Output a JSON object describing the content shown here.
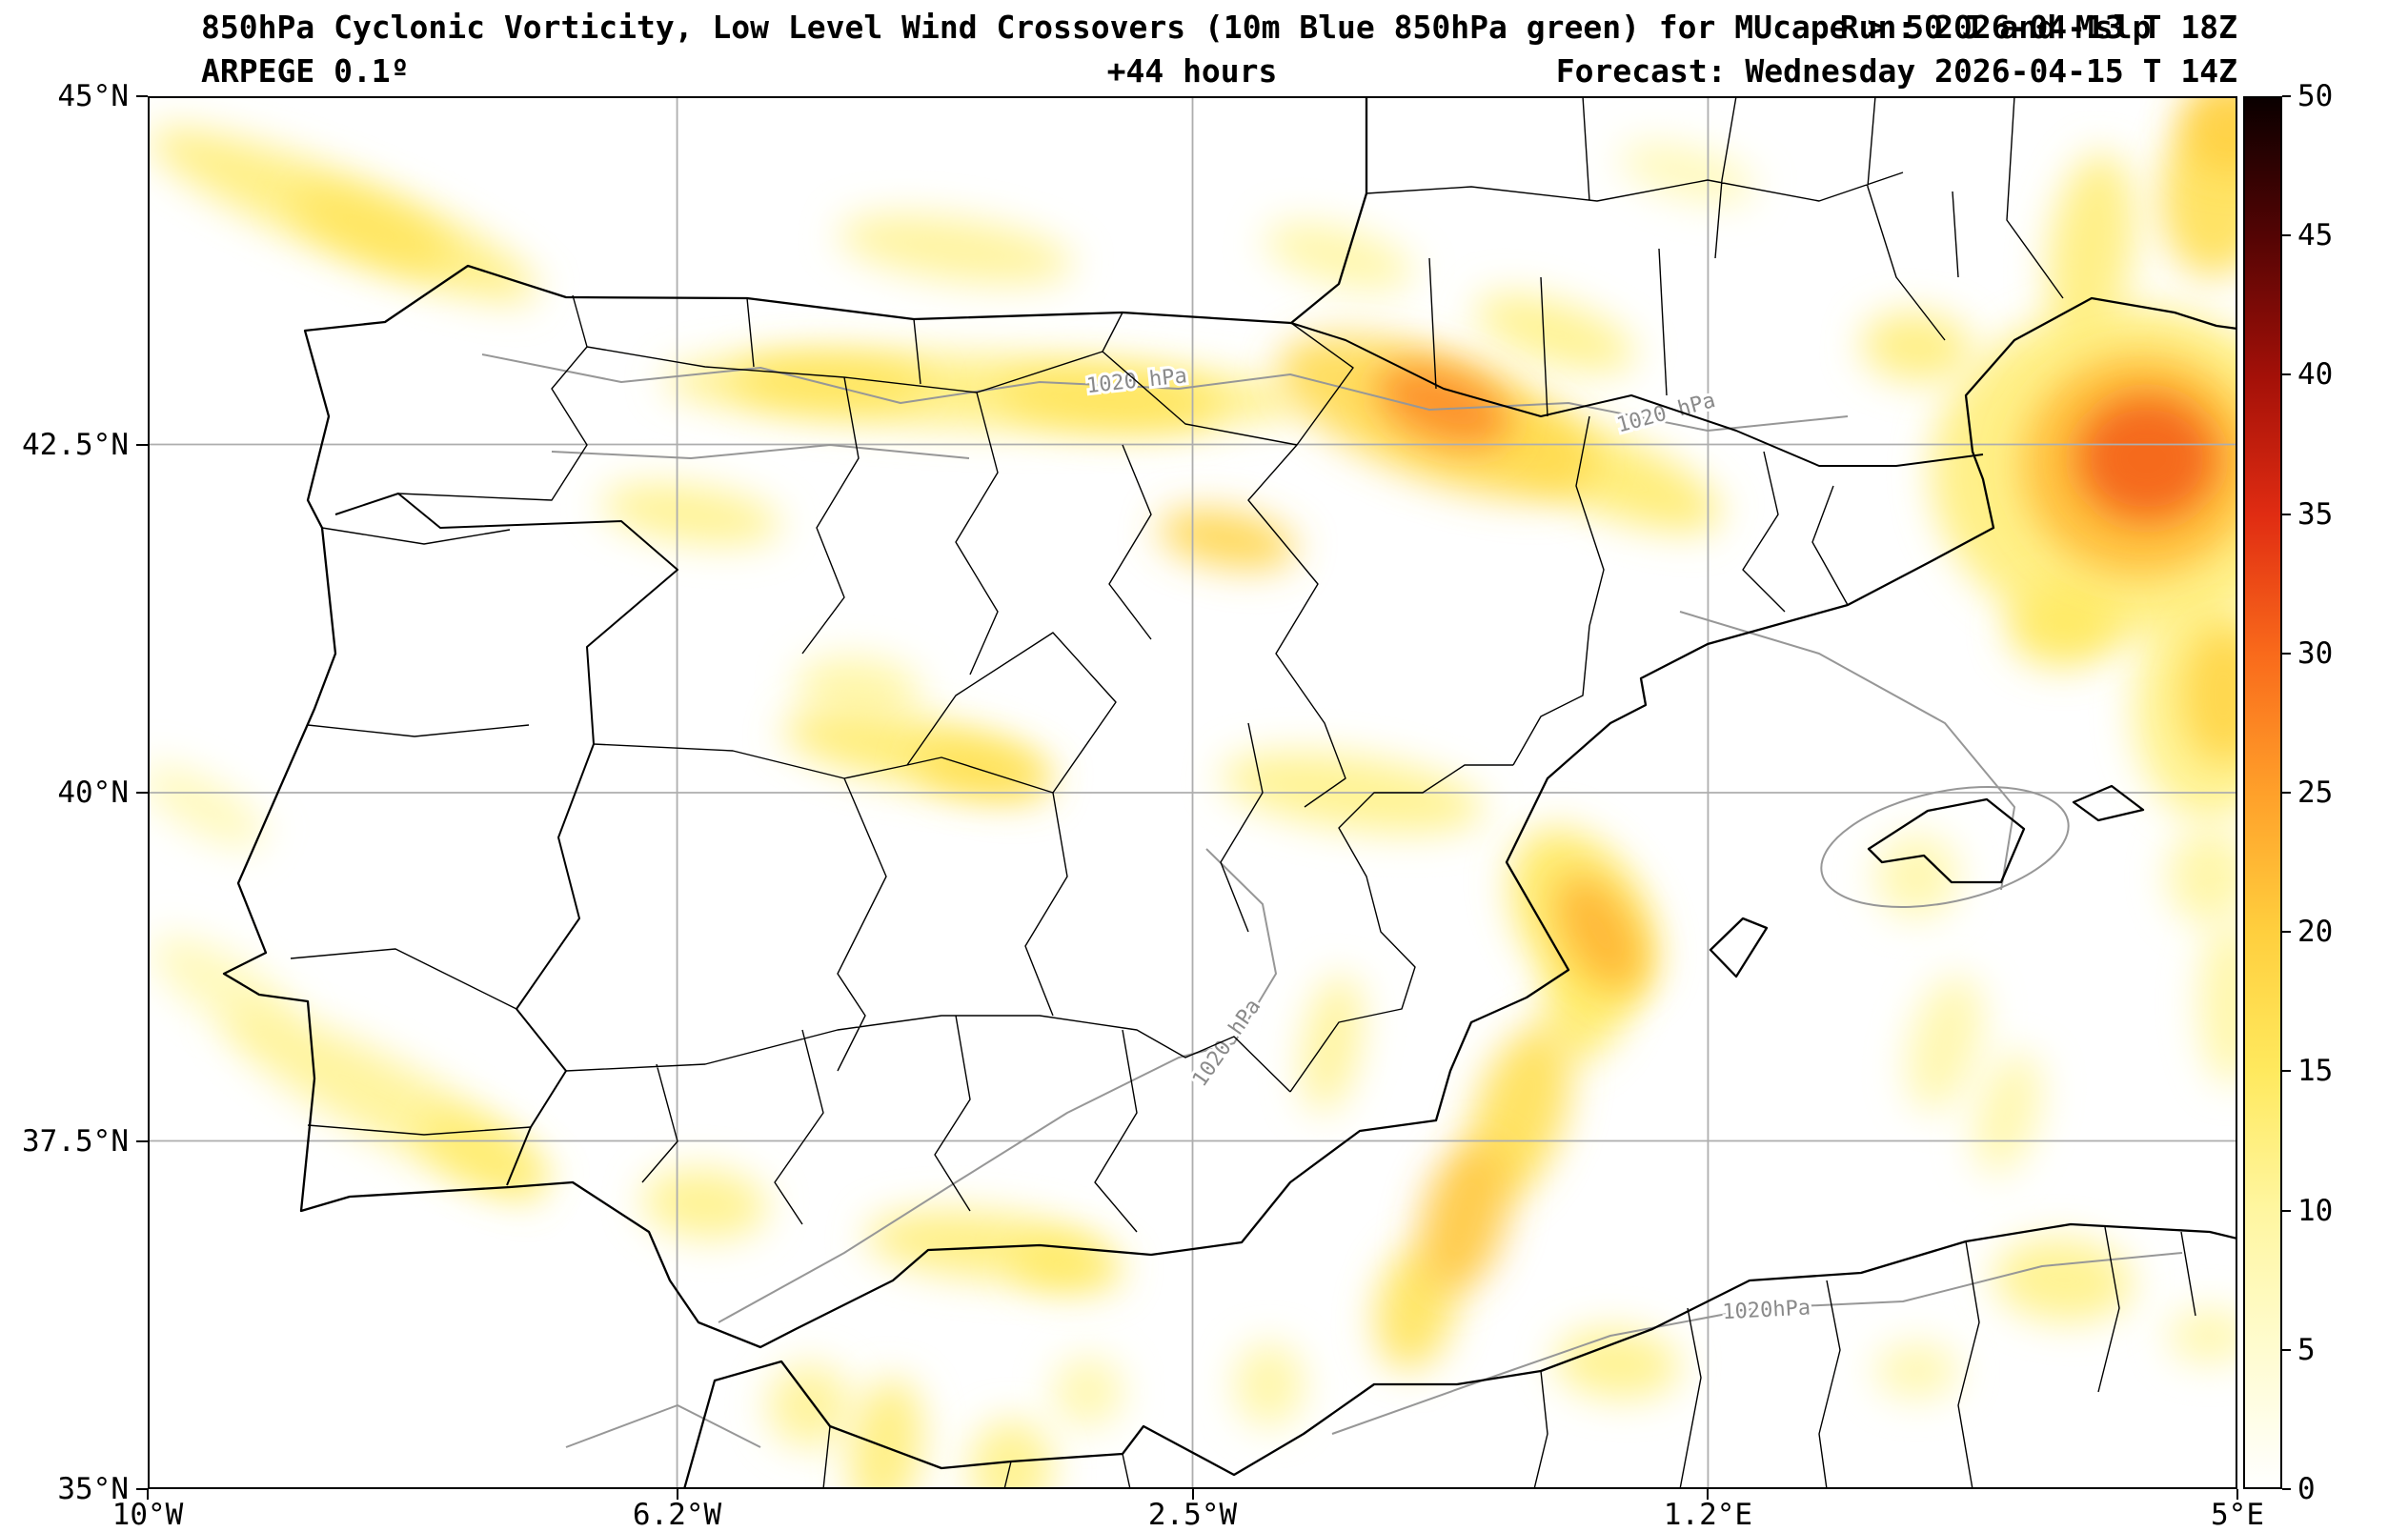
{
  "header": {
    "title_main": "850hPa Cyclonic Vorticity, Low Level Wind Crossovers (10m Blue 850hPa green) for MUcape > 50 J and Mslp",
    "run_label": "Run: 2026-04-13 T 18Z",
    "model_label": "ARPEGE 0.1º",
    "lead_label": "+44 hours",
    "forecast_label": "Forecast: Wednesday 2026-04-15 T 14Z"
  },
  "chart_data": {
    "type": "heatmap",
    "title": "850hPa Cyclonic Vorticity, Low Level Wind Crossovers (10m Blue 850hPa green) for MUcape > 50 J and Mslp",
    "model": "ARPEGE 0.1º",
    "run": "2026-04-13 T 18Z",
    "forecast_hour": "+44 hours",
    "valid": "Wednesday 2026-04-15 T 14Z",
    "grid": true,
    "x": {
      "label": "longitude",
      "range": [
        -10,
        5
      ],
      "ticks": [
        "10°W",
        "6.2°W",
        "2.5°W",
        "1.2°E",
        "5°E"
      ],
      "tick_lons": [
        -10,
        -6.2,
        -2.5,
        1.2,
        5
      ]
    },
    "y": {
      "label": "latitude",
      "range": [
        35,
        45
      ],
      "ticks": [
        "45°N",
        "42.5°N",
        "40°N",
        "37.5°N",
        "35°N"
      ],
      "tick_lats": [
        45,
        42.5,
        40,
        37.5,
        35
      ]
    },
    "colorbar": {
      "range": [
        0,
        50
      ],
      "ticks": [
        0,
        5,
        10,
        15,
        20,
        25,
        30,
        35,
        40,
        45,
        50
      ],
      "stops": [
        {
          "v": 0,
          "c": "#ffffff"
        },
        {
          "v": 5,
          "c": "#fffccf"
        },
        {
          "v": 10,
          "c": "#fff6a0"
        },
        {
          "v": 15,
          "c": "#ffe95e"
        },
        {
          "v": 20,
          "c": "#ffcf3e"
        },
        {
          "v": 25,
          "c": "#ffa02a"
        },
        {
          "v": 30,
          "c": "#f96a1b"
        },
        {
          "v": 35,
          "c": "#e02c12"
        },
        {
          "v": 40,
          "c": "#a31008"
        },
        {
          "v": 45,
          "c": "#540404"
        },
        {
          "v": 50,
          "c": "#0a0000"
        }
      ]
    },
    "mslp_contours_hpa": [
      1020
    ],
    "mslp_labels": [
      {
        "text": "1020 hPa",
        "lon": -2.9,
        "lat": 42.95,
        "rot": -6
      },
      {
        "text": "1020 hPa",
        "lon": 0.9,
        "lat": 42.72,
        "rot": -15
      },
      {
        "text": "1020 hPa",
        "lon": -2.25,
        "lat": 38.2,
        "rot": -55
      },
      {
        "text": "1020hPa",
        "lon": 1.62,
        "lat": 36.28,
        "rot": -3
      }
    ],
    "hotspots": [
      {
        "lon": -8.6,
        "lat": 44.15,
        "rx": 1.5,
        "ry": 0.28,
        "rot": 22,
        "value": 13
      },
      {
        "lon": -8.4,
        "lat": 44.05,
        "rx": 0.6,
        "ry": 0.18,
        "rot": 22,
        "value": 16
      },
      {
        "lon": -4.2,
        "lat": 43.9,
        "rx": 0.85,
        "ry": 0.22,
        "rot": 8,
        "value": 11
      },
      {
        "lon": -1.45,
        "lat": 43.85,
        "rx": 0.55,
        "ry": 0.2,
        "rot": 15,
        "value": 10
      },
      {
        "lon": 0.1,
        "lat": 43.3,
        "rx": 0.6,
        "ry": 0.22,
        "rot": 18,
        "value": 12
      },
      {
        "lon": 1.05,
        "lat": 44.45,
        "rx": 0.5,
        "ry": 0.18,
        "rot": 15,
        "value": 8
      },
      {
        "lon": -4.0,
        "lat": 42.88,
        "rx": 2.3,
        "ry": 0.26,
        "rot": 2,
        "value": 13
      },
      {
        "lon": -5.1,
        "lat": 42.95,
        "rx": 0.7,
        "ry": 0.18,
        "rot": 2,
        "value": 16
      },
      {
        "lon": -3.1,
        "lat": 42.82,
        "rx": 0.8,
        "ry": 0.2,
        "rot": 4,
        "value": 16
      },
      {
        "lon": -0.75,
        "lat": 42.7,
        "rx": 1.2,
        "ry": 0.45,
        "rot": 20,
        "value": 18
      },
      {
        "lon": -0.7,
        "lat": 42.78,
        "rx": 0.5,
        "ry": 0.26,
        "rot": 20,
        "value": 27
      },
      {
        "lon": 0.45,
        "lat": 42.3,
        "rx": 0.9,
        "ry": 0.28,
        "rot": 22,
        "value": 14
      },
      {
        "lon": -2.25,
        "lat": 41.82,
        "rx": 0.5,
        "ry": 0.2,
        "rot": 10,
        "value": 19
      },
      {
        "lon": -6.1,
        "lat": 42.0,
        "rx": 0.65,
        "ry": 0.2,
        "rot": 8,
        "value": 12
      },
      {
        "lon": 4.2,
        "lat": 42.3,
        "rx": 1.4,
        "ry": 1.2,
        "rot": 0,
        "value": 13
      },
      {
        "lon": 4.3,
        "lat": 42.35,
        "rx": 0.85,
        "ry": 0.8,
        "rot": 0,
        "value": 22
      },
      {
        "lon": 4.35,
        "lat": 42.4,
        "rx": 0.5,
        "ry": 0.45,
        "rot": 0,
        "value": 31
      },
      {
        "lon": 3.95,
        "lat": 43.9,
        "rx": 0.3,
        "ry": 0.7,
        "rot": 8,
        "value": 13
      },
      {
        "lon": 4.85,
        "lat": 44.3,
        "rx": 0.4,
        "ry": 0.6,
        "rot": 5,
        "value": 17
      },
      {
        "lon": 4.95,
        "lat": 44.8,
        "rx": 0.35,
        "ry": 0.35,
        "rot": 0,
        "value": 20
      },
      {
        "lon": 2.7,
        "lat": 43.2,
        "rx": 0.4,
        "ry": 0.25,
        "rot": 5,
        "value": 13
      },
      {
        "lon": 3.75,
        "lat": 41.2,
        "rx": 0.4,
        "ry": 0.3,
        "rot": 0,
        "value": 15
      },
      {
        "lon": 4.9,
        "lat": 40.7,
        "rx": 0.3,
        "ry": 0.5,
        "rot": 0,
        "value": 19
      },
      {
        "lon": 4.8,
        "lat": 40.6,
        "rx": 0.55,
        "ry": 0.8,
        "rot": 0,
        "value": 12
      },
      {
        "lon": -4.5,
        "lat": 40.3,
        "rx": 0.95,
        "ry": 0.24,
        "rot": 10,
        "value": 14
      },
      {
        "lon": -4.0,
        "lat": 40.15,
        "rx": 0.5,
        "ry": 0.18,
        "rot": 10,
        "value": 17
      },
      {
        "lon": -4.9,
        "lat": 40.75,
        "rx": 0.45,
        "ry": 0.22,
        "rot": 5,
        "value": 10
      },
      {
        "lon": -1.35,
        "lat": 40.0,
        "rx": 0.95,
        "ry": 0.26,
        "rot": 8,
        "value": 12
      },
      {
        "lon": 0.3,
        "lat": 39.1,
        "rx": 0.45,
        "ry": 0.7,
        "rot": -30,
        "value": 15
      },
      {
        "lon": 0.42,
        "lat": 39.0,
        "rx": 0.25,
        "ry": 0.45,
        "rot": -30,
        "value": 23
      },
      {
        "lon": 0.35,
        "lat": 38.55,
        "rx": 0.3,
        "ry": 0.5,
        "rot": 20,
        "value": 14
      },
      {
        "lon": -0.15,
        "lat": 37.7,
        "rx": 0.32,
        "ry": 0.65,
        "rot": 18,
        "value": 17
      },
      {
        "lon": -0.55,
        "lat": 36.95,
        "rx": 0.3,
        "ry": 0.55,
        "rot": 15,
        "value": 21
      },
      {
        "lon": -0.9,
        "lat": 36.3,
        "rx": 0.28,
        "ry": 0.45,
        "rot": 12,
        "value": 16
      },
      {
        "lon": -1.5,
        "lat": 38.2,
        "rx": 0.2,
        "ry": 0.5,
        "rot": 10,
        "value": 11
      },
      {
        "lon": -4.0,
        "lat": 36.75,
        "rx": 0.85,
        "ry": 0.24,
        "rot": 5,
        "value": 13
      },
      {
        "lon": -3.4,
        "lat": 36.6,
        "rx": 0.4,
        "ry": 0.18,
        "rot": 5,
        "value": 15
      },
      {
        "lon": -6.0,
        "lat": 37.05,
        "rx": 0.45,
        "ry": 0.25,
        "rot": 5,
        "value": 12
      },
      {
        "lon": -8.3,
        "lat": 37.8,
        "rx": 1.3,
        "ry": 0.28,
        "rot": 28,
        "value": 11
      },
      {
        "lon": -7.6,
        "lat": 37.4,
        "rx": 0.5,
        "ry": 0.2,
        "rot": 28,
        "value": 14
      },
      {
        "lon": -9.6,
        "lat": 39.9,
        "rx": 0.5,
        "ry": 0.18,
        "rot": 30,
        "value": 8
      },
      {
        "lon": -9.45,
        "lat": 38.6,
        "rx": 0.6,
        "ry": 0.22,
        "rot": 32,
        "value": 8
      },
      {
        "lon": -5.25,
        "lat": 35.6,
        "rx": 0.3,
        "ry": 0.3,
        "rot": 0,
        "value": 11
      },
      {
        "lon": -4.7,
        "lat": 35.3,
        "rx": 0.26,
        "ry": 0.5,
        "rot": 8,
        "value": 13
      },
      {
        "lon": -3.8,
        "lat": 35.15,
        "rx": 0.3,
        "ry": 0.35,
        "rot": 0,
        "value": 12
      },
      {
        "lon": -3.25,
        "lat": 35.7,
        "rx": 0.25,
        "ry": 0.25,
        "rot": 0,
        "value": 9
      },
      {
        "lon": -1.95,
        "lat": 35.75,
        "rx": 0.25,
        "ry": 0.3,
        "rot": 0,
        "value": 10
      },
      {
        "lon": 0.55,
        "lat": 35.9,
        "rx": 0.45,
        "ry": 0.25,
        "rot": 5,
        "value": 12
      },
      {
        "lon": 3.75,
        "lat": 36.5,
        "rx": 0.5,
        "ry": 0.3,
        "rot": 5,
        "value": 12
      },
      {
        "lon": 2.7,
        "lat": 35.85,
        "rx": 0.3,
        "ry": 0.2,
        "rot": 0,
        "value": 9
      },
      {
        "lon": 4.8,
        "lat": 36.1,
        "rx": 0.3,
        "ry": 0.2,
        "rot": 0,
        "value": 9
      },
      {
        "lon": 2.9,
        "lat": 38.2,
        "rx": 0.25,
        "ry": 0.5,
        "rot": 15,
        "value": 9
      },
      {
        "lon": 3.35,
        "lat": 37.7,
        "rx": 0.22,
        "ry": 0.45,
        "rot": 15,
        "value": 9
      },
      {
        "lon": 2.7,
        "lat": 39.4,
        "rx": 0.3,
        "ry": 0.3,
        "rot": 0,
        "value": 9
      },
      {
        "lon": 4.8,
        "lat": 39.4,
        "rx": 0.3,
        "ry": 0.35,
        "rot": 0,
        "value": 10
      },
      {
        "lon": 4.95,
        "lat": 38.5,
        "rx": 0.22,
        "ry": 0.6,
        "rot": 0,
        "value": 10
      }
    ]
  }
}
